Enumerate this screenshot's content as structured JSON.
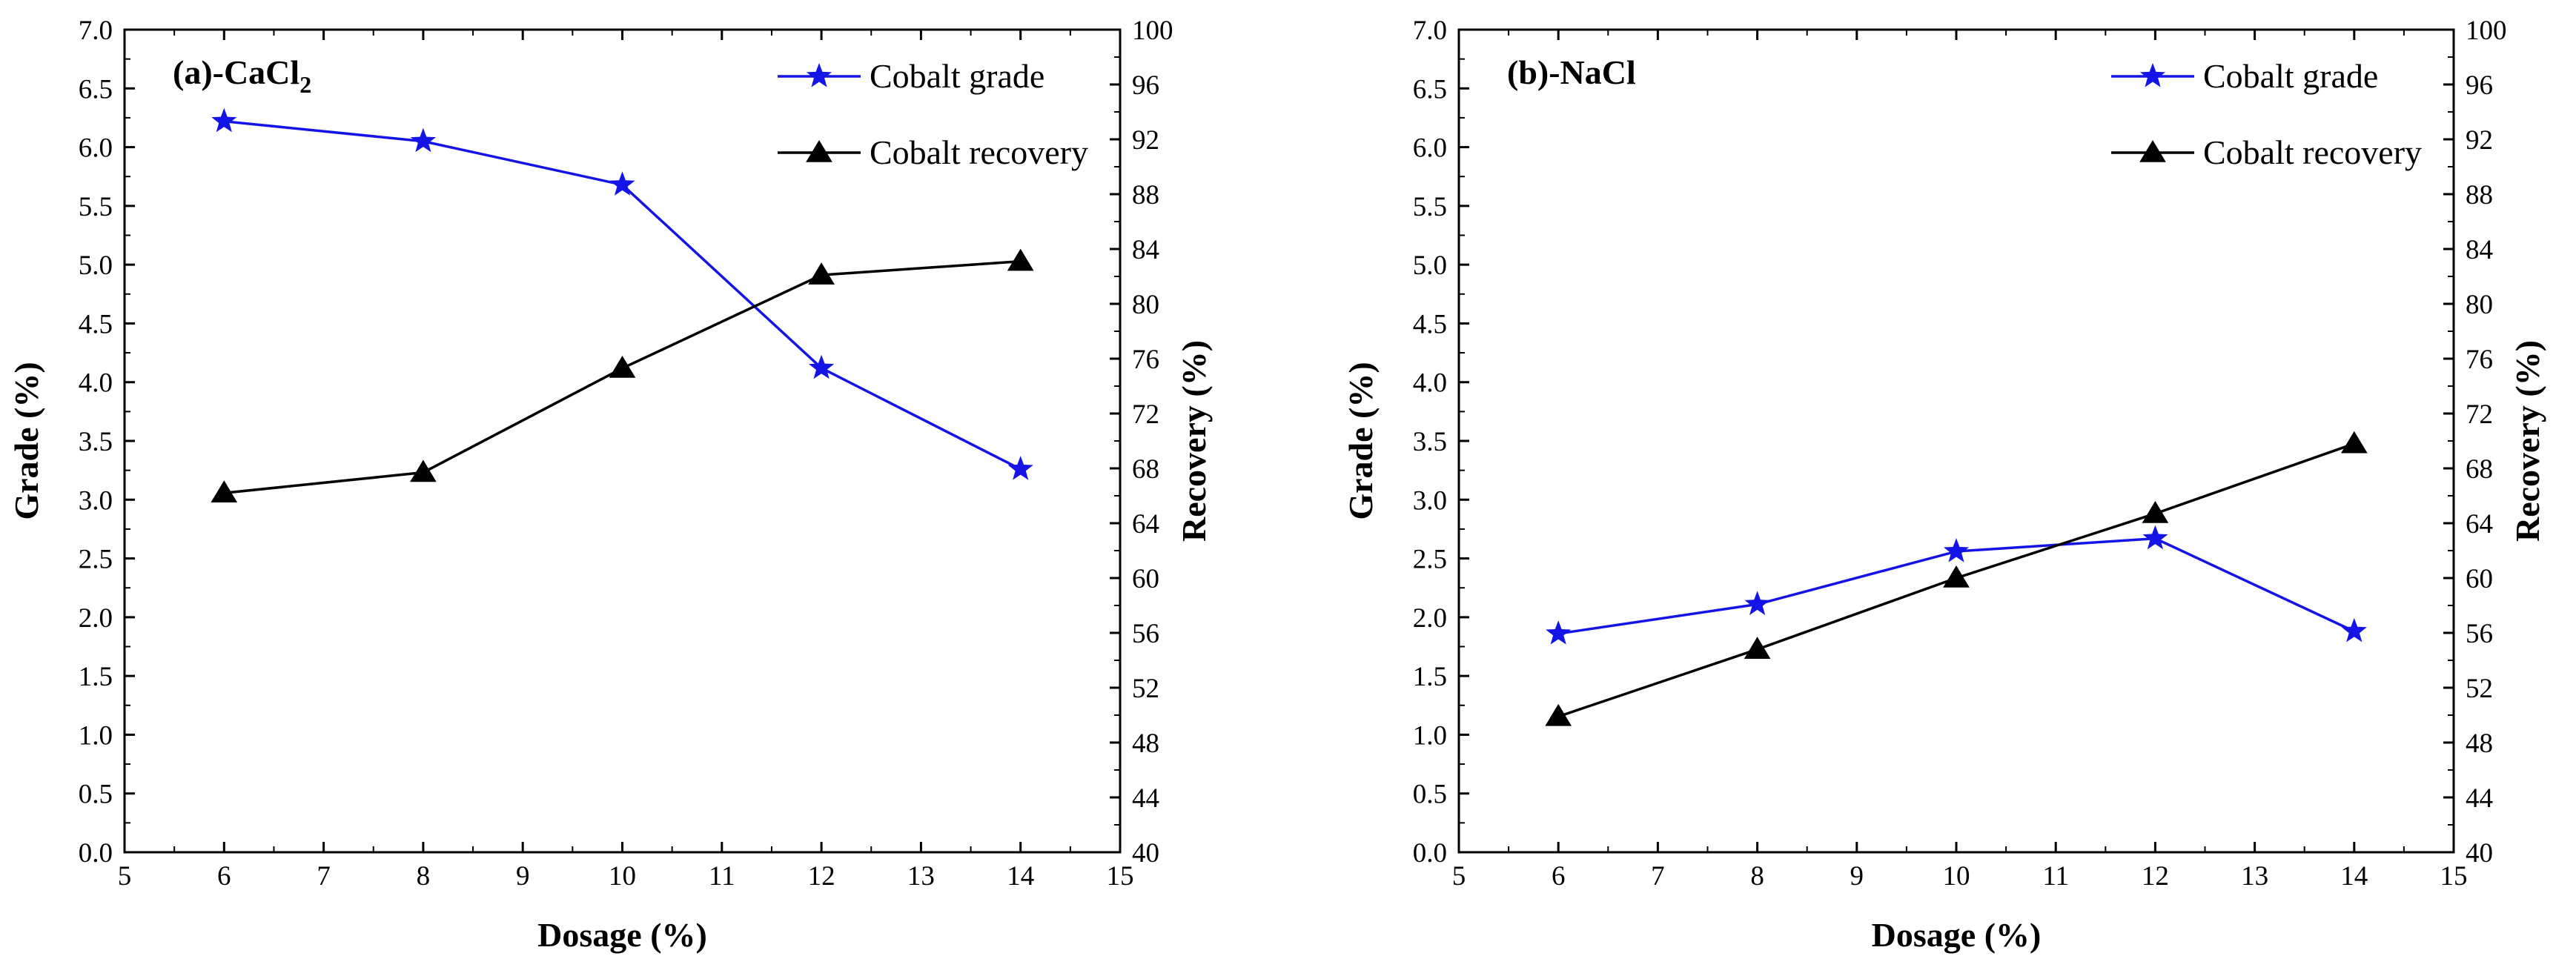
{
  "colors": {
    "grade": "#1414e6",
    "recovery": "#000000",
    "axis": "#000000",
    "background": "#ffffff"
  },
  "marker_names": {
    "grade": "star",
    "recovery": "triangle"
  },
  "chart_data": [
    {
      "type": "line",
      "title_main": "(a)-CaCl",
      "title_sub": "2",
      "xlabel": "Dosage (%)",
      "ylabel": "Grade (%)",
      "y2label": "Recovery (%)",
      "xlim": [
        5,
        15
      ],
      "ylim": [
        0,
        7
      ],
      "y2lim": [
        40,
        100
      ],
      "xticks": [
        "5",
        "6",
        "7",
        "8",
        "9",
        "10",
        "11",
        "12",
        "13",
        "14",
        "15"
      ],
      "yticks": [
        "0.0",
        "0.5",
        "1.0",
        "1.5",
        "2.0",
        "2.5",
        "3.0",
        "3.5",
        "4.0",
        "4.5",
        "5.0",
        "5.5",
        "6.0",
        "6.5",
        "7.0"
      ],
      "y2ticks": [
        "40",
        "44",
        "48",
        "52",
        "56",
        "60",
        "64",
        "68",
        "72",
        "76",
        "80",
        "84",
        "88",
        "92",
        "96",
        "100"
      ],
      "x": [
        6,
        8,
        10,
        12,
        14
      ],
      "legend_position": "top-right",
      "series": [
        {
          "name": "Cobalt grade",
          "axis": "left",
          "values": [
            6.22,
            6.05,
            5.68,
            4.12,
            3.26
          ]
        },
        {
          "name": "Cobalt recovery",
          "axis": "right",
          "values": [
            66.2,
            67.7,
            75.3,
            82.1,
            83.1
          ]
        }
      ]
    },
    {
      "type": "line",
      "title_main": "(b)-NaCl",
      "title_sub": "",
      "xlabel": "Dosage (%)",
      "ylabel": "Grade (%)",
      "y2label": "Recovery (%)",
      "xlim": [
        5,
        15
      ],
      "ylim": [
        0,
        7
      ],
      "y2lim": [
        40,
        100
      ],
      "xticks": [
        "5",
        "6",
        "7",
        "8",
        "9",
        "10",
        "11",
        "12",
        "13",
        "14",
        "15"
      ],
      "yticks": [
        "0.0",
        "0.5",
        "1.0",
        "1.5",
        "2.0",
        "2.5",
        "3.0",
        "3.5",
        "4.0",
        "4.5",
        "5.0",
        "5.5",
        "6.0",
        "6.5",
        "7.0"
      ],
      "y2ticks": [
        "40",
        "44",
        "48",
        "52",
        "56",
        "60",
        "64",
        "68",
        "72",
        "76",
        "80",
        "84",
        "88",
        "92",
        "96",
        "100"
      ],
      "x": [
        6,
        8,
        10,
        12,
        14
      ],
      "legend_position": "top-right",
      "series": [
        {
          "name": "Cobalt grade",
          "axis": "left",
          "values": [
            1.86,
            2.11,
            2.56,
            2.67,
            1.88
          ]
        },
        {
          "name": "Cobalt recovery",
          "axis": "right",
          "values": [
            49.9,
            54.8,
            60.0,
            64.7,
            69.8
          ]
        }
      ]
    }
  ]
}
